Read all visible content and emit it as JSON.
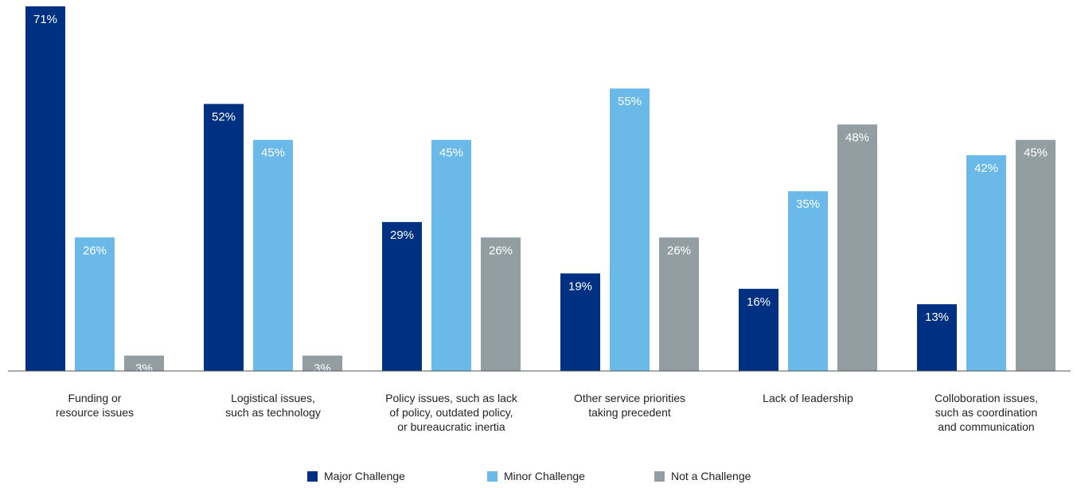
{
  "chart_data": {
    "type": "bar",
    "categories": [
      [
        "Funding or",
        "resource issues"
      ],
      [
        "Logistical issues,",
        "such as technology"
      ],
      [
        "Policy issues, such as lack",
        "of policy, outdated policy,",
        "or bureaucratic inertia"
      ],
      [
        "Other service priorities",
        "taking precedent"
      ],
      [
        "Lack of leadership"
      ],
      [
        "Colloboration issues,",
        "such as coordination",
        "and communication"
      ]
    ],
    "series": [
      {
        "name": "Major Challenge",
        "color": "#003082",
        "values": [
          71,
          52,
          29,
          19,
          16,
          13
        ]
      },
      {
        "name": "Minor Challenge",
        "color": "#6ab9e9",
        "values": [
          26,
          45,
          45,
          55,
          35,
          42
        ]
      },
      {
        "name": "Not a Challenge",
        "color": "#939ea3",
        "values": [
          3,
          3,
          26,
          26,
          48,
          45
        ]
      }
    ],
    "value_suffix": "%",
    "ylim": [
      0,
      71
    ],
    "legend_position": "bottom-center",
    "grid": false
  }
}
